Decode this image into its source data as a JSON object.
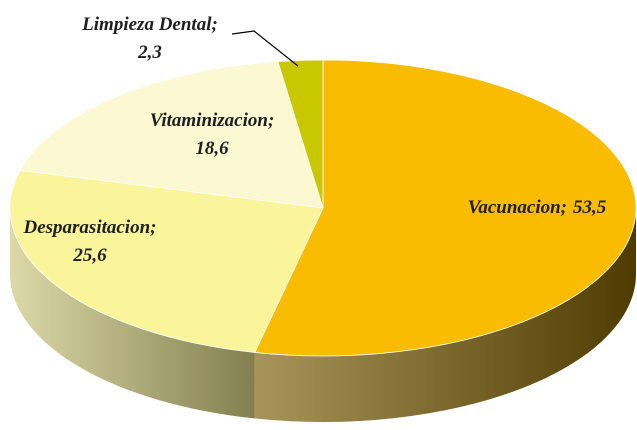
{
  "chart_data": {
    "type": "pie3d",
    "categories": [
      "Vacunacion",
      "Desparasitacion",
      "Vitaminizacion",
      "Limpieza Dental"
    ],
    "values": [
      53.5,
      25.6,
      18.6,
      2.3
    ],
    "value_labels": [
      "53,5",
      "25,6",
      "18,6",
      "2,3"
    ],
    "label_separator": ";",
    "colors": [
      "#f9bc00",
      "#faf59a",
      "#fbf8d2",
      "#c9c700"
    ],
    "side_colors": [
      "#7a5c00",
      "#c9c47a",
      "#d0cda6",
      "#8a8800"
    ]
  }
}
